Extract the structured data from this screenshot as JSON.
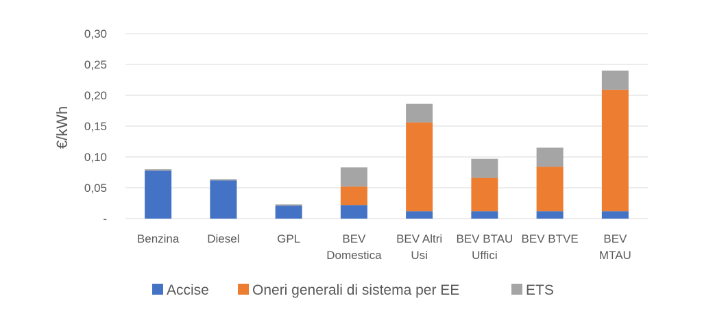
{
  "chart_data": {
    "type": "bar",
    "stacked": true,
    "ylabel": "€/kWh",
    "ylim": [
      0,
      0.3
    ],
    "yticks": [
      "-",
      "0,05",
      "0,10",
      "0,15",
      "0,20",
      "0,25",
      "0,30"
    ],
    "ytick_values": [
      0,
      0.05,
      0.1,
      0.15,
      0.2,
      0.25,
      0.3
    ],
    "grid": true,
    "legend_position": "bottom",
    "categories": [
      [
        "Benzina"
      ],
      [
        "Diesel"
      ],
      [
        "GPL"
      ],
      [
        "BEV",
        "Domestica"
      ],
      [
        "BEV Altri",
        "Usi"
      ],
      [
        "BEV BTAU",
        "Uffici"
      ],
      [
        "BEV BTVE"
      ],
      [
        "BEV",
        "MTAU"
      ]
    ],
    "series": [
      {
        "name": "Accise",
        "color": "#4472C4",
        "values": [
          0.078,
          0.062,
          0.021,
          0.022,
          0.012,
          0.012,
          0.012,
          0.012
        ]
      },
      {
        "name": "Oneri generali di sistema per EE",
        "color": "#ED7D31",
        "values": [
          0,
          0,
          0,
          0.03,
          0.144,
          0.054,
          0.072,
          0.197
        ]
      },
      {
        "name": "ETS",
        "color": "#A5A5A5",
        "values": [
          0.002,
          0.002,
          0.002,
          0.031,
          0.03,
          0.031,
          0.031,
          0.031
        ]
      }
    ]
  }
}
